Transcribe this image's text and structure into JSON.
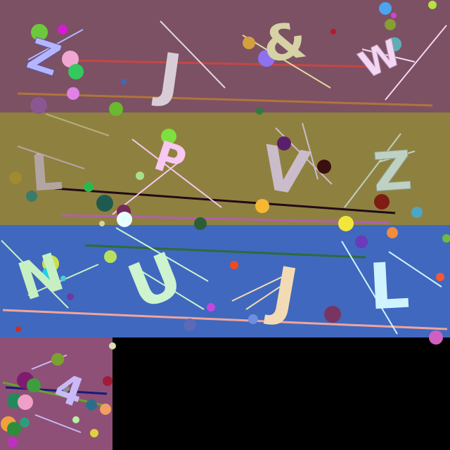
{
  "captcha": {
    "rows": [
      {
        "background": "#7B5163",
        "characters": [
          "Z",
          "J",
          "&",
          "W"
        ],
        "character_colors": [
          "#B3B6FF",
          "#D8CDD6",
          "#D7D2A6",
          "#F3D6F3"
        ]
      },
      {
        "background": "#8E8140",
        "characters": [
          "L",
          "P",
          "V",
          "Z"
        ],
        "character_colors": [
          "#B3A5A2",
          "#F7C8F1",
          "#CBBCCB",
          "#BFD1C3"
        ]
      },
      {
        "background": "#4068BE",
        "characters": [
          "N",
          "U",
          "J",
          "L"
        ],
        "character_colors": [
          "#C7F0C2",
          "#CDF3CF",
          "#F2DBB4",
          "#CFF3FF"
        ]
      },
      {
        "background": "#8E5076",
        "characters": [
          "4"
        ],
        "character_colors": [
          "#C9B9F7"
        ]
      }
    ],
    "blank_area_color": "#000000"
  }
}
